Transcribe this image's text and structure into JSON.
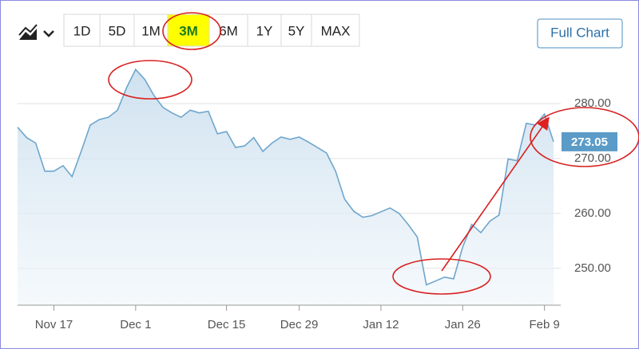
{
  "chart_data": {
    "type": "line",
    "range_buttons": [
      "1D",
      "5D",
      "1M",
      "3M",
      "6M",
      "1Y",
      "5Y",
      "MAX"
    ],
    "selected": "3M",
    "full_chart_button": "Full Chart",
    "categories": [
      null,
      null,
      null,
      null,
      "Nov 17",
      null,
      null,
      null,
      null,
      null,
      null,
      null,
      null,
      "Dec 1",
      null,
      null,
      null,
      null,
      null,
      null,
      null,
      null,
      null,
      "Dec 15",
      null,
      null,
      null,
      null,
      null,
      null,
      null,
      "Dec 29",
      null,
      null,
      null,
      null,
      null,
      null,
      null,
      null,
      "Jan 12",
      null,
      null,
      null,
      null,
      null,
      null,
      null,
      null,
      "Jan 26",
      null,
      null,
      null,
      null,
      null,
      null,
      null,
      null,
      "Feb 9",
      null
    ],
    "series": [
      {
        "color": "#6ea6cc",
        "values": [
          275.7,
          273.8,
          272.8,
          267.7,
          267.7,
          268.7,
          266.7,
          271.3,
          276.1,
          277.1,
          277.5,
          278.8,
          282.9,
          286.2,
          284.4,
          281.5,
          279.3,
          278.3,
          277.5,
          278.8,
          278.3,
          278.6,
          274.5,
          274.9,
          272.0,
          272.3,
          273.8,
          271.3,
          272.8,
          273.9,
          273.5,
          273.9,
          273.0,
          272.0,
          271.0,
          267.7,
          262.6,
          260.4,
          259.3,
          259.6,
          260.3,
          261.0,
          260.0,
          258.0,
          255.7,
          247.0,
          247.7,
          248.4,
          248.1,
          253.9,
          258.0,
          256.5,
          258.6,
          259.7,
          269.9,
          269.6,
          276.4,
          276.1,
          278.1,
          273.05
        ]
      }
    ],
    "current_price": {
      "value": 273.05,
      "label": "273.05",
      "color": "#5b9bc7"
    },
    "ylim": [
      243.3,
      288.7
    ],
    "yticks": [
      {
        "value": 250,
        "label": "250.00"
      },
      {
        "value": 260,
        "label": "260.00"
      },
      {
        "value": 270,
        "label": "270.00"
      },
      {
        "value": 280,
        "label": "280.00"
      }
    ],
    "grid": true
  }
}
